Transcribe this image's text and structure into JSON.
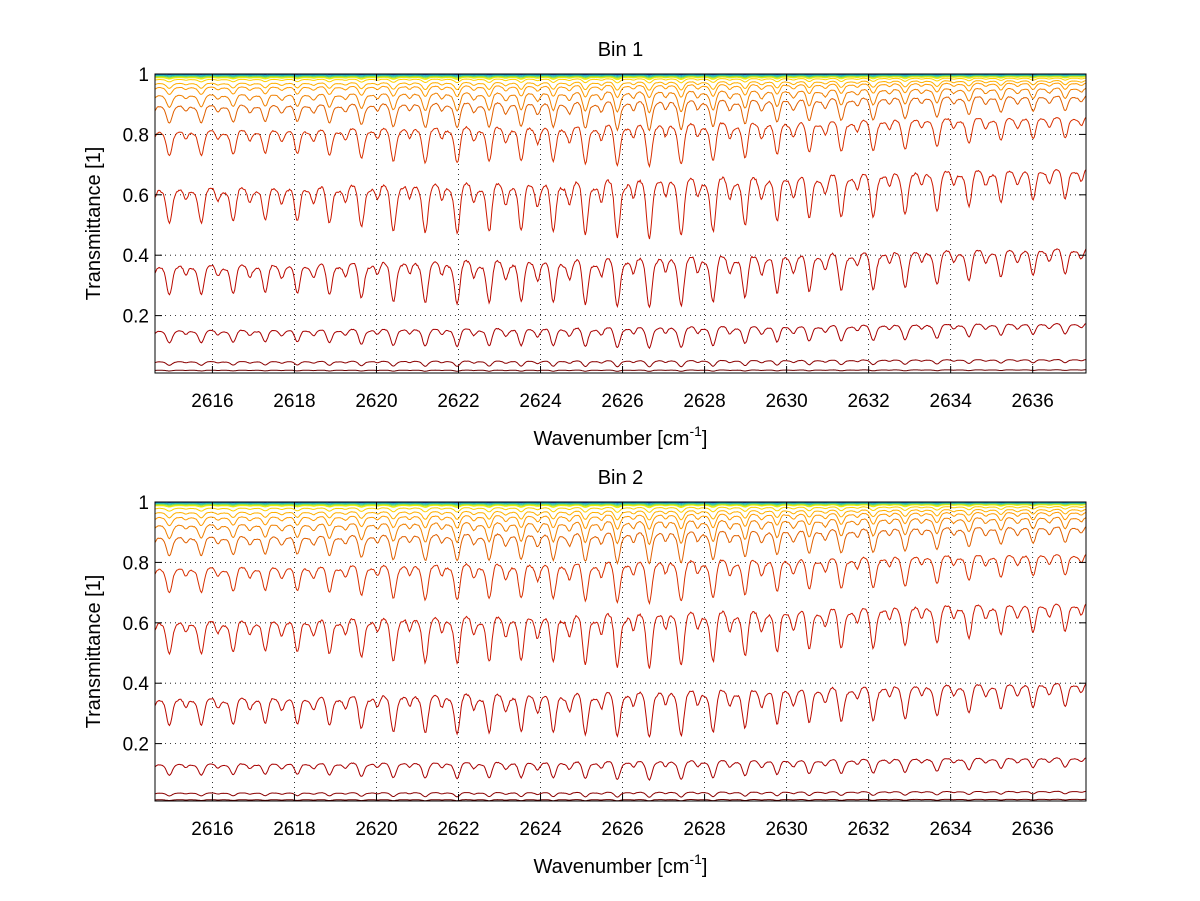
{
  "chart_data": [
    {
      "type": "line",
      "title": "Bin 1",
      "xlabel": "Wavenumber [cm",
      "xlabel_sup": "-1",
      "xlabel_end": "]",
      "ylabel": "Transmittance [1]",
      "xlim": [
        2614.6,
        2637.3
      ],
      "ylim": [
        0.01,
        1.0
      ],
      "grid": true,
      "xticks": [
        2616,
        2618,
        2620,
        2622,
        2624,
        2626,
        2628,
        2630,
        2632,
        2634,
        2636
      ],
      "xtick_labels": [
        "2616",
        "2618",
        "2620",
        "2622",
        "2624",
        "2626",
        "2628",
        "2630",
        "2632",
        "2634",
        "2636"
      ],
      "yticks": [
        0.2,
        0.4,
        0.6,
        0.8,
        1.0
      ],
      "ytick_labels": [
        "0.2",
        "0.4",
        "0.6",
        "0.8",
        "1"
      ],
      "line_spacing_cm1": 0.78,
      "series": [
        {
          "base": 1.0,
          "depth": 0.0015,
          "color": "#1f4fb4"
        },
        {
          "base": 0.998,
          "depth": 0.002,
          "color": "#0aa0c8"
        },
        {
          "base": 0.996,
          "depth": 0.003,
          "color": "#2cc4a0"
        },
        {
          "base": 0.994,
          "depth": 0.004,
          "color": "#7ed850"
        },
        {
          "base": 0.992,
          "depth": 0.005,
          "color": "#d6e61e"
        },
        {
          "base": 0.99,
          "depth": 0.006,
          "color": "#f0f000"
        },
        {
          "base": 0.985,
          "depth": 0.01,
          "color": "#ffd000"
        },
        {
          "base": 0.975,
          "depth": 0.02,
          "color": "#ffb000"
        },
        {
          "base": 0.965,
          "depth": 0.03,
          "color": "#ff9a00"
        },
        {
          "base": 0.945,
          "depth": 0.05,
          "color": "#f08000"
        },
        {
          "base": 0.915,
          "depth": 0.07,
          "color": "#e06000"
        },
        {
          "base": 0.84,
          "depth": 0.1,
          "color": "#d83000"
        },
        {
          "base": 0.66,
          "depth": 0.14,
          "color": "#cc1800"
        },
        {
          "base": 0.4,
          "depth": 0.12,
          "color": "#bb0a00"
        },
        {
          "base": 0.165,
          "depth": 0.05,
          "color": "#a80000"
        },
        {
          "base": 0.052,
          "depth": 0.015,
          "color": "#8a0000"
        },
        {
          "base": 0.02,
          "depth": 0.003,
          "color": "#6a0000"
        }
      ]
    },
    {
      "type": "line",
      "title": "Bin 2",
      "xlabel": "Wavenumber [cm",
      "xlabel_sup": "-1",
      "xlabel_end": "]",
      "ylabel": "Transmittance [1]",
      "xlim": [
        2614.6,
        2637.3
      ],
      "ylim": [
        0.01,
        1.0
      ],
      "grid": true,
      "xticks": [
        2616,
        2618,
        2620,
        2622,
        2624,
        2626,
        2628,
        2630,
        2632,
        2634,
        2636
      ],
      "xtick_labels": [
        "2616",
        "2618",
        "2620",
        "2622",
        "2624",
        "2626",
        "2628",
        "2630",
        "2632",
        "2634",
        "2636"
      ],
      "yticks": [
        0.2,
        0.4,
        0.6,
        0.8,
        1.0
      ],
      "ytick_labels": [
        "0.2",
        "0.4",
        "0.6",
        "0.8",
        "1"
      ],
      "line_spacing_cm1": 0.78,
      "series": [
        {
          "base": 1.0,
          "depth": 0.0015,
          "color": "#1f4fb4"
        },
        {
          "base": 0.998,
          "depth": 0.002,
          "color": "#0aa0c8"
        },
        {
          "base": 0.996,
          "depth": 0.003,
          "color": "#2cc4a0"
        },
        {
          "base": 0.994,
          "depth": 0.004,
          "color": "#7ed850"
        },
        {
          "base": 0.992,
          "depth": 0.005,
          "color": "#d6e61e"
        },
        {
          "base": 0.99,
          "depth": 0.006,
          "color": "#f0f000"
        },
        {
          "base": 0.983,
          "depth": 0.012,
          "color": "#ffd000"
        },
        {
          "base": 0.972,
          "depth": 0.022,
          "color": "#ffb000"
        },
        {
          "base": 0.96,
          "depth": 0.035,
          "color": "#ff9a00"
        },
        {
          "base": 0.94,
          "depth": 0.055,
          "color": "#f08000"
        },
        {
          "base": 0.905,
          "depth": 0.075,
          "color": "#e06000"
        },
        {
          "base": 0.81,
          "depth": 0.1,
          "color": "#d83000"
        },
        {
          "base": 0.64,
          "depth": 0.13,
          "color": "#cc1800"
        },
        {
          "base": 0.38,
          "depth": 0.11,
          "color": "#bb0a00"
        },
        {
          "base": 0.145,
          "depth": 0.045,
          "color": "#a80000"
        },
        {
          "base": 0.04,
          "depth": 0.012,
          "color": "#8a0000"
        },
        {
          "base": 0.015,
          "depth": 0.003,
          "color": "#6a0000"
        }
      ]
    }
  ]
}
